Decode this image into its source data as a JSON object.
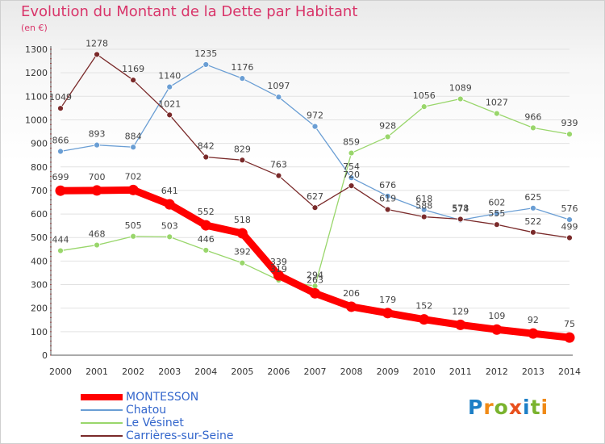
{
  "title": "Evolution du Montant de la Dette par Habitant",
  "subtitle": "(en €)",
  "logo": {
    "letters": [
      "P",
      "r",
      "o",
      "x",
      "i",
      "t",
      "i"
    ],
    "colors": [
      "#1d7fc6",
      "#f08a16",
      "#7ab32e",
      "#e8501d",
      "#1d7fc6",
      "#7ab32e",
      "#f08a16"
    ]
  },
  "chart_data": {
    "type": "line",
    "title": "Evolution du Montant de la Dette par Habitant",
    "subtitle": "(en €)",
    "x": [
      "2000",
      "2001",
      "2002",
      "2003",
      "2004",
      "2005",
      "2006",
      "2007",
      "2008",
      "2009",
      "2010",
      "2011",
      "2012",
      "2013",
      "2014"
    ],
    "ylim": [
      0,
      1300
    ],
    "yticks": [
      0,
      100,
      200,
      300,
      400,
      500,
      600,
      700,
      800,
      900,
      1000,
      1100,
      1200,
      1300
    ],
    "grid": true,
    "legend_position": "bottom-left",
    "series": [
      {
        "name": "Chatou",
        "color": "#6a9ed4",
        "width": 1.3,
        "values": [
          866,
          893,
          884,
          1140,
          1235,
          1176,
          1097,
          972,
          754,
          676,
          618,
          574,
          602,
          625,
          576
        ]
      },
      {
        "name": "Le Vésinet",
        "color": "#99d66b",
        "width": 1.3,
        "values": [
          444,
          468,
          505,
          503,
          446,
          392,
          319,
          294,
          859,
          928,
          1056,
          1089,
          1027,
          966,
          939
        ]
      },
      {
        "name": "Carrières-sur-Seine",
        "color": "#7a2a2a",
        "width": 1.3,
        "values": [
          1049,
          1278,
          1169,
          1021,
          842,
          829,
          763,
          627,
          720,
          619,
          588,
          578,
          555,
          522,
          499
        ]
      },
      {
        "name": "MONTESSON",
        "color": "#ff0000",
        "width": 9,
        "values": [
          699,
          700,
          702,
          641,
          552,
          518,
          339,
          263,
          206,
          179,
          152,
          129,
          109,
          92,
          75
        ]
      }
    ]
  }
}
